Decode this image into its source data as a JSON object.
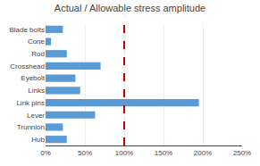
{
  "chart_data": {
    "type": "bar",
    "orientation": "horizontal",
    "title": "Actual / Allowable stress amplitude",
    "categories": [
      "Blade bolts",
      "Cone",
      "Rod",
      "Crosshead",
      "Eyebolt",
      "Links",
      "Link pins",
      "Lever",
      "Trunnion",
      "Hub"
    ],
    "values": [
      22,
      7,
      27,
      70,
      38,
      44,
      195,
      63,
      22,
      27
    ],
    "color": "#5b9bd5",
    "xlim": [
      0,
      250
    ],
    "xticks": [
      {
        "value": 0,
        "label": "0%"
      },
      {
        "value": 50,
        "label": "50%"
      },
      {
        "value": 100,
        "label": "100%"
      },
      {
        "value": 150,
        "label": "150%"
      },
      {
        "value": 200,
        "label": "200%"
      },
      {
        "value": 250,
        "label": "250%"
      }
    ],
    "reference_line": {
      "x": 100,
      "color": "#c00000"
    },
    "grid": true
  }
}
